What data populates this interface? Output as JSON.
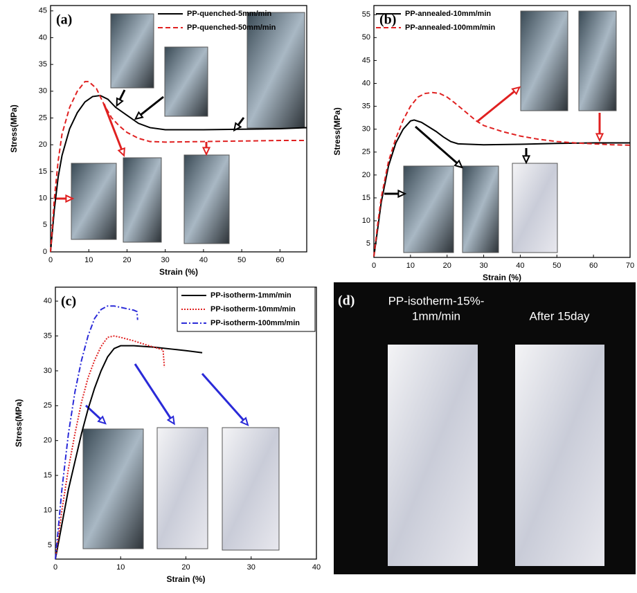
{
  "chart_data": [
    {
      "type": "line",
      "panel_label": "(a)",
      "x_label": "Strain (%)",
      "y_label": "Stress(MPa)",
      "xlim": [
        0,
        67
      ],
      "xticks": [
        0,
        10,
        20,
        30,
        40,
        50,
        60
      ],
      "ylim": [
        0,
        46
      ],
      "yticks": [
        0,
        5,
        10,
        15,
        20,
        25,
        30,
        35,
        40,
        45
      ],
      "legend": "upper right",
      "series": [
        {
          "name": "PP-quenched-5mm/min",
          "color": "#000000",
          "linestyle": "solid",
          "x": [
            0,
            1,
            2,
            3,
            5,
            7,
            9,
            11,
            13,
            15,
            17,
            20,
            23,
            26,
            30,
            40,
            50,
            60,
            67
          ],
          "values": [
            0,
            8,
            14,
            18,
            23,
            26,
            28,
            29,
            29.2,
            28.5,
            27,
            25.5,
            24,
            23.2,
            22.8,
            22.8,
            22.9,
            23,
            23.2
          ]
        },
        {
          "name": "PP-quenched-50mm/min",
          "color": "#e02020",
          "linestyle": "dashed",
          "x": [
            0,
            1,
            2,
            3,
            5,
            7,
            9,
            10,
            12,
            14,
            16,
            18,
            20,
            23,
            26,
            30,
            40,
            50,
            60,
            67
          ],
          "values": [
            0,
            10,
            17,
            22,
            27,
            30,
            31.8,
            31.8,
            30.5,
            27.5,
            25,
            23.5,
            22.3,
            21.2,
            20.6,
            20.5,
            20.6,
            20.7,
            20.8,
            20.8
          ]
        }
      ]
    },
    {
      "type": "line",
      "panel_label": "(b)",
      "x_label": "Strain (%)",
      "y_label": "Stress(MPa)",
      "xlim": [
        0,
        70
      ],
      "xticks": [
        0,
        10,
        20,
        30,
        40,
        50,
        60,
        70
      ],
      "ylim": [
        2,
        57
      ],
      "yticks": [
        5,
        10,
        15,
        20,
        25,
        30,
        35,
        40,
        45,
        50,
        55
      ],
      "legend": "upper left",
      "series": [
        {
          "name": "PP-annealed-10mm/min",
          "color": "#000000",
          "linestyle": "solid",
          "x": [
            0,
            1,
            2,
            4,
            6,
            8,
            10,
            11,
            13,
            15,
            17,
            19,
            21,
            23,
            30,
            40,
            50,
            60,
            70
          ],
          "values": [
            2.2,
            8,
            14,
            22,
            27,
            30,
            31.8,
            32,
            31.5,
            30.5,
            29.5,
            28.3,
            27.3,
            26.8,
            26.6,
            26.7,
            26.9,
            27,
            27
          ]
        },
        {
          "name": "PP-annealed-100mm/min",
          "color": "#e02020",
          "linestyle": "dashed",
          "x": [
            0,
            1,
            2,
            4,
            6,
            8,
            10,
            12,
            14,
            16,
            18,
            20,
            22,
            25,
            28,
            30,
            35,
            40,
            45,
            50,
            55,
            60,
            65,
            70
          ],
          "values": [
            2.2,
            9,
            15,
            23,
            28,
            32,
            35,
            37,
            37.8,
            38,
            37.8,
            37,
            35.8,
            33.8,
            31.8,
            30.8,
            29.5,
            28.5,
            27.8,
            27.3,
            27,
            26.8,
            26.6,
            26.5
          ]
        }
      ]
    },
    {
      "type": "line",
      "panel_label": "(c)",
      "x_label": "Strain (%)",
      "y_label": "Stress(MPa)",
      "xlim": [
        0,
        40
      ],
      "xticks": [
        0,
        10,
        20,
        30,
        40
      ],
      "ylim": [
        3,
        42
      ],
      "yticks": [
        5,
        10,
        15,
        20,
        25,
        30,
        35,
        40
      ],
      "legend": "upper right",
      "series": [
        {
          "name": "PP-isotherm-1mm/min",
          "color": "#000000",
          "linestyle": "solid",
          "x": [
            0,
            1,
            2,
            3,
            4,
            5,
            6,
            7,
            8,
            9,
            10,
            12,
            15,
            18,
            20,
            22.5
          ],
          "values": [
            3,
            8,
            13,
            17,
            21,
            24.5,
            27.5,
            30,
            32,
            33.2,
            33.6,
            33.6,
            33.4,
            33.1,
            32.9,
            32.6
          ]
        },
        {
          "name": "PP-isotherm-10mm/min",
          "color": "#e02020",
          "linestyle": "dotted",
          "x": [
            0,
            1,
            2,
            3,
            4,
            5,
            6,
            7,
            8,
            9,
            10,
            12,
            14,
            16.5,
            16.7
          ],
          "values": [
            3,
            10,
            16,
            21,
            25.5,
            29,
            31.5,
            33.5,
            34.8,
            35,
            34.8,
            34.3,
            33.7,
            33,
            30.5
          ]
        },
        {
          "name": "PP-isotherm-100mm/min",
          "color": "#2a2ad8",
          "linestyle": "dashdot",
          "x": [
            0,
            1,
            2,
            3,
            4,
            5,
            6,
            7,
            8,
            9,
            10,
            12,
            12.5,
            12.6
          ],
          "values": [
            3,
            13,
            21,
            27,
            31.5,
            35,
            37.5,
            38.8,
            39.3,
            39.3,
            39.1,
            38.7,
            38.5,
            37.3
          ]
        }
      ]
    }
  ],
  "photo_panel": {
    "label": "(d)",
    "captions": [
      "PP-isotherm-15%-",
      "1mm/min",
      "After 15day"
    ]
  }
}
